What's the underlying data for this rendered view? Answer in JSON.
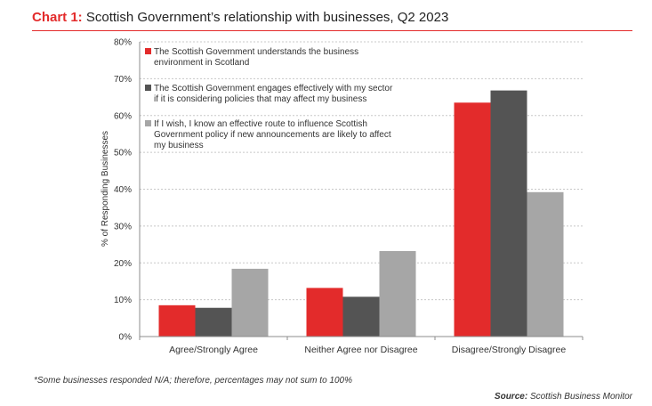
{
  "title": {
    "prefix": "Chart 1:",
    "text": "Scottish Government’s relationship with businesses, Q2 2023"
  },
  "footnote": "*Some businesses responded N/A; therefore, percentages may not sum to 100%",
  "source": {
    "label": "Source:",
    "value": "Scottish Business Monitor"
  },
  "chart_data": {
    "type": "bar",
    "title": "",
    "xlabel": "",
    "ylabel": "% of Responding Businesses",
    "ylim": [
      0,
      80
    ],
    "yticks": [
      0,
      10,
      20,
      30,
      40,
      50,
      60,
      70,
      80
    ],
    "ytick_labels": [
      "0%",
      "10%",
      "20%",
      "30%",
      "40%",
      "50%",
      "60%",
      "70%",
      "80%"
    ],
    "grid": true,
    "legend_position": "top-left",
    "categories": [
      "Agree/Strongly Agree",
      "Neither Agree nor Disagree",
      "Disagree/Strongly Disagree"
    ],
    "series": [
      {
        "name": "The Scottish Government understands the business environment in Scotland",
        "legend_lines": [
          "The Scottish Government understands the business",
          "environment in Scotland"
        ],
        "color": "#e32b2b",
        "values": [
          8.5,
          13.2,
          63.5
        ]
      },
      {
        "name": "The Scottish Government engages effectively with my sector if it is considering policies that may affect my business",
        "legend_lines": [
          "The Scottish Government engages effectively with my sector",
          "if it is considering policies that may affect my business"
        ],
        "color": "#545454",
        "values": [
          7.8,
          10.8,
          66.8
        ]
      },
      {
        "name": "If I wish, I know an effective route to influence Scottish Government policy if new announcements are likely to affect my business",
        "legend_lines": [
          "If I wish, I know an effective route to influence Scottish",
          "Government policy if new announcements are likely to affect",
          "my business"
        ],
        "color": "#a6a6a6",
        "values": [
          18.4,
          23.2,
          39.2
        ]
      }
    ]
  }
}
